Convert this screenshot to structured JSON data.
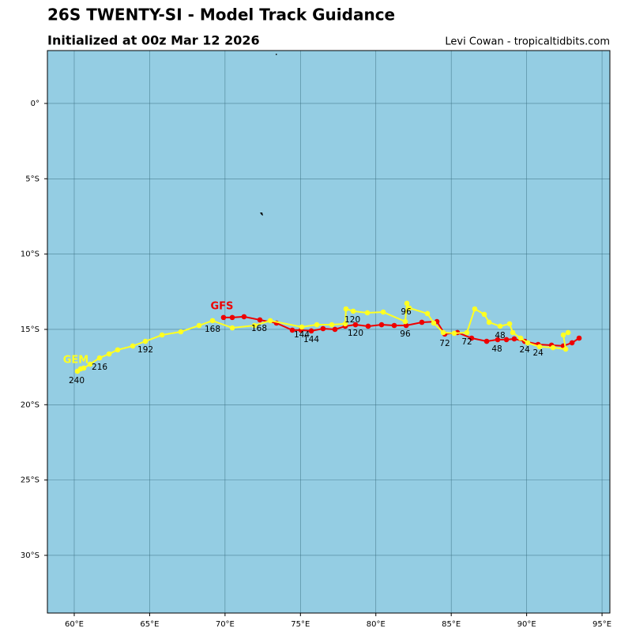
{
  "chart_data": {
    "type": "line",
    "title": "26S TWENTY-SI - Model Track Guidance",
    "subtitle": "Initialized at 00z Mar 12 2026",
    "credit": "Levi Cowan - tropicaltidbits.com",
    "xlim": [
      58.22,
      95.52
    ],
    "ylim": [
      -33.83,
      3.51
    ],
    "xticks": [
      {
        "value": 60,
        "label": "60°E"
      },
      {
        "value": 65,
        "label": "65°E"
      },
      {
        "value": 70,
        "label": "70°E"
      },
      {
        "value": 75,
        "label": "75°E"
      },
      {
        "value": 80,
        "label": "80°E"
      },
      {
        "value": 85,
        "label": "85°E"
      },
      {
        "value": 90,
        "label": "90°E"
      },
      {
        "value": 95,
        "label": "95°E"
      }
    ],
    "yticks": [
      {
        "value": 0,
        "label": "0°"
      },
      {
        "value": -5,
        "label": "5°S"
      },
      {
        "value": -10,
        "label": "10°S"
      },
      {
        "value": -15,
        "label": "15°S"
      },
      {
        "value": -20,
        "label": "20°S"
      },
      {
        "value": -25,
        "label": "25°S"
      },
      {
        "value": -30,
        "label": "30°S"
      }
    ],
    "grid": true,
    "series": [
      {
        "name": "GFS",
        "color": "#ee0000",
        "x": [
          93.48,
          93.01,
          92.43,
          91.65,
          90.76,
          89.87,
          89.18,
          88.66,
          88.08,
          87.35,
          86.35,
          85.41,
          84.57,
          84.05,
          83.05,
          82.01,
          81.22,
          80.38,
          79.49,
          78.65,
          77.97,
          77.29,
          76.5,
          75.72,
          75.04,
          74.46,
          73.41,
          72.31,
          71.26,
          70.48,
          69.9
        ],
        "values": [
          -15.58,
          -15.89,
          -16.1,
          -16.05,
          -16.0,
          -15.79,
          -15.63,
          -15.68,
          -15.68,
          -15.79,
          -15.58,
          -15.21,
          -15.31,
          -14.48,
          -14.53,
          -14.74,
          -14.74,
          -14.69,
          -14.79,
          -14.69,
          -14.79,
          -15.0,
          -14.95,
          -15.1,
          -15.05,
          -15.05,
          -14.58,
          -14.37,
          -14.16,
          -14.21,
          -14.21
        ]
      },
      {
        "name": "GEM",
        "color": "#ffff22",
        "x": [
          92.75,
          92.43,
          92.59,
          91.75,
          90.86,
          90.07,
          89.6,
          89.08,
          88.87,
          88.24,
          87.51,
          87.19,
          86.56,
          86.04,
          85.2,
          84.47,
          83.84,
          83.42,
          82.22,
          82.06,
          81.95,
          80.49,
          79.44,
          78.5,
          78.02,
          77.97,
          77.08,
          76.09,
          75.09,
          73.0,
          71.95,
          70.48,
          69.17,
          68.28,
          67.07,
          65.82,
          64.72,
          63.88,
          62.88,
          62.31,
          61.68,
          61.05,
          60.63,
          60.42,
          60.21
        ],
        "values": [
          -15.21,
          -15.37,
          -16.31,
          -16.21,
          -16.15,
          -15.89,
          -15.58,
          -15.21,
          -14.63,
          -14.79,
          -14.53,
          -14.0,
          -13.64,
          -15.21,
          -15.26,
          -15.21,
          -14.58,
          -13.95,
          -13.58,
          -13.27,
          -14.48,
          -13.85,
          -13.9,
          -13.79,
          -13.64,
          -14.63,
          -14.69,
          -14.69,
          -14.84,
          -14.42,
          -14.74,
          -14.9,
          -14.42,
          -14.74,
          -15.16,
          -15.37,
          -15.79,
          -16.1,
          -16.36,
          -16.63,
          -16.89,
          -17.31,
          -17.57,
          -17.62,
          -17.78
        ]
      }
    ],
    "annotations": [
      {
        "text": "240",
        "x": 60.16,
        "y": -18.41
      },
      {
        "text": "216",
        "x": 61.68,
        "y": -17.52
      },
      {
        "text": "192",
        "x": 64.72,
        "y": -16.36
      },
      {
        "text": "168",
        "x": 69.17,
        "y": -15.0
      },
      {
        "text": "168",
        "x": 72.26,
        "y": -14.95
      },
      {
        "text": "144",
        "x": 75.09,
        "y": -15.37
      },
      {
        "text": "144",
        "x": 75.72,
        "y": -15.68
      },
      {
        "text": "120",
        "x": 78.45,
        "y": -14.37
      },
      {
        "text": "120",
        "x": 78.65,
        "y": -15.26
      },
      {
        "text": "96",
        "x": 82.01,
        "y": -13.85
      },
      {
        "text": "96",
        "x": 81.95,
        "y": -15.31
      },
      {
        "text": "72",
        "x": 84.57,
        "y": -15.94
      },
      {
        "text": "72",
        "x": 86.04,
        "y": -15.84
      },
      {
        "text": "48",
        "x": 88.24,
        "y": -15.42
      },
      {
        "text": "48",
        "x": 88.03,
        "y": -16.31
      },
      {
        "text": "24",
        "x": 89.87,
        "y": -16.36
      },
      {
        "text": "24",
        "x": 90.76,
        "y": -16.57
      }
    ]
  }
}
